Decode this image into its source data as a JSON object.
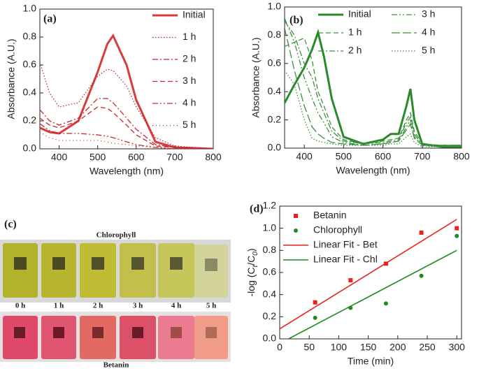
{
  "chart_data": [
    {
      "type": "line",
      "panel_label": "(a)",
      "xlabel": "Wavelength (nm)",
      "ylabel": "Absorbance (A.U.)",
      "x": [
        350,
        375,
        400,
        450,
        500,
        525,
        540,
        575,
        600,
        650,
        700,
        800
      ],
      "xlim": [
        350,
        800
      ],
      "xticks": [
        400,
        500,
        600,
        700,
        800
      ],
      "ylim": [
        0,
        1.0
      ],
      "yticks": [
        {
          "value": 0,
          "label": "0.0"
        },
        0.2,
        0.4,
        0.6,
        0.8,
        {
          "value": 1.0,
          "label": "1.0"
        }
      ],
      "legend": "upper right",
      "legend_columns": 1,
      "series": [
        {
          "name": "Initial",
          "color": "#d93a3a",
          "line_style": "solid",
          "width": 3,
          "values": [
            0.15,
            0.12,
            0.11,
            0.2,
            0.55,
            0.75,
            0.81,
            0.6,
            0.35,
            0.05,
            0.01,
            0.0
          ]
        },
        {
          "name": "1 h",
          "color": "#c8282d",
          "line_style": "dotted",
          "width": 1.3,
          "values": [
            0.62,
            0.4,
            0.3,
            0.33,
            0.52,
            0.57,
            0.56,
            0.45,
            0.3,
            0.08,
            0.02,
            0.0
          ]
        },
        {
          "name": "2 h",
          "color": "#c8282d",
          "line_style": "dashdot",
          "width": 1.3,
          "values": [
            0.28,
            0.2,
            0.17,
            0.22,
            0.36,
            0.36,
            0.33,
            0.22,
            0.14,
            0.03,
            0.01,
            0.0
          ]
        },
        {
          "name": "3 h",
          "color": "#c8282d",
          "line_style": "dashed",
          "width": 1.3,
          "values": [
            0.22,
            0.17,
            0.15,
            0.2,
            0.3,
            0.29,
            0.26,
            0.17,
            0.1,
            0.02,
            0.01,
            0.0
          ]
        },
        {
          "name": "4 h",
          "color": "#c8282d",
          "line_style": "dashdotdot",
          "width": 1.3,
          "values": [
            0.18,
            0.13,
            0.11,
            0.11,
            0.1,
            0.09,
            0.08,
            0.05,
            0.03,
            0.01,
            0.0,
            0.0
          ]
        },
        {
          "name": "5 h",
          "color": "#c8282d",
          "line_style": "shortdot",
          "width": 1.3,
          "values": [
            0.12,
            0.08,
            0.06,
            0.06,
            0.06,
            0.05,
            0.04,
            0.03,
            0.02,
            0.01,
            0.0,
            0.0
          ]
        }
      ]
    },
    {
      "type": "line",
      "panel_label": "(b)",
      "xlabel": "Wavelength (nm)",
      "ylabel": "Absorbance (A.U.)",
      "x": [
        350,
        375,
        400,
        420,
        435,
        450,
        470,
        500,
        550,
        600,
        620,
        640,
        660,
        670,
        680,
        700,
        750,
        800
      ],
      "xlim": [
        350,
        800
      ],
      "xticks": [
        400,
        500,
        600,
        700,
        800
      ],
      "ylim": [
        0,
        1.0
      ],
      "yticks": [
        {
          "value": 0,
          "label": "0.0"
        },
        0.2,
        0.4,
        0.6,
        0.8,
        {
          "value": 1.0,
          "label": "1.0"
        }
      ],
      "legend": "upper right",
      "legend_columns": 2,
      "series": [
        {
          "name": "Initial",
          "color": "#2a8a2a",
          "line_style": "solid",
          "width": 3,
          "values": [
            0.32,
            0.45,
            0.57,
            0.7,
            0.82,
            0.65,
            0.35,
            0.08,
            0.03,
            0.06,
            0.1,
            0.1,
            0.3,
            0.42,
            0.2,
            0.03,
            0.01,
            0.01
          ]
        },
        {
          "name": "1 h",
          "color": "#3c8f3c",
          "line_style": "dashed",
          "width": 1.3,
          "values": [
            0.72,
            0.75,
            0.78,
            0.62,
            0.4,
            0.3,
            0.15,
            0.06,
            0.03,
            0.05,
            0.06,
            0.07,
            0.2,
            0.25,
            0.12,
            0.03,
            0.02,
            0.02
          ]
        },
        {
          "name": "2 h",
          "color": "#3c8f3c",
          "line_style": "dashdot",
          "width": 1.3,
          "values": [
            0.9,
            0.8,
            0.6,
            0.5,
            0.35,
            0.25,
            0.12,
            0.05,
            0.03,
            0.04,
            0.05,
            0.06,
            0.18,
            0.22,
            0.1,
            0.02,
            0.02,
            0.02
          ]
        },
        {
          "name": "3 h",
          "color": "#3c8f3c",
          "line_style": "dashdotdot",
          "width": 1.3,
          "values": [
            0.92,
            0.75,
            0.5,
            0.35,
            0.25,
            0.18,
            0.08,
            0.04,
            0.02,
            0.03,
            0.04,
            0.05,
            0.15,
            0.2,
            0.08,
            0.02,
            0.02,
            0.02
          ]
        },
        {
          "name": "4 h",
          "color": "#3c8f3c",
          "line_style": "longdash",
          "width": 1.3,
          "values": [
            0.85,
            0.55,
            0.3,
            0.15,
            0.1,
            0.07,
            0.04,
            0.03,
            0.02,
            0.03,
            0.04,
            0.05,
            0.13,
            0.17,
            0.07,
            0.02,
            0.01,
            0.01
          ]
        },
        {
          "name": "5 h",
          "color": "#3c8f3c",
          "line_style": "dotted",
          "width": 1.3,
          "values": [
            0.55,
            0.45,
            0.2,
            0.07,
            0.05,
            0.04,
            0.03,
            0.02,
            0.02,
            0.02,
            0.03,
            0.03,
            0.08,
            0.1,
            0.04,
            0.01,
            0.01,
            0.01
          ]
        }
      ]
    },
    {
      "type": "scatter",
      "panel_label": "(d)",
      "xlabel": "Time (min)",
      "ylabel_parts": [
        "-log (C",
        "t",
        "/C",
        "0",
        ")"
      ],
      "xlim": [
        0,
        308
      ],
      "xticks": [
        0,
        50,
        100,
        150,
        200,
        250,
        300
      ],
      "ylim": [
        0,
        1.2
      ],
      "yticks": [
        {
          "value": 0,
          "label": "0.0"
        },
        0.2,
        0.4,
        0.6,
        0.8,
        {
          "value": 1.0,
          "label": "1.0"
        },
        1.2
      ],
      "legend": "upper left",
      "legend_columns": 1,
      "series": [
        {
          "name": "Betanin",
          "color": "#e8221f",
          "style": "markers",
          "marker": "square",
          "x": [
            60,
            120,
            180,
            240,
            300
          ],
          "values": [
            0.33,
            0.53,
            0.68,
            0.96,
            1.0
          ]
        },
        {
          "name": "Chlorophyll",
          "color": "#1f8a1f",
          "style": "markers",
          "marker": "circle",
          "x": [
            60,
            120,
            180,
            240,
            300
          ],
          "values": [
            0.19,
            0.28,
            0.32,
            0.57,
            0.93
          ]
        },
        {
          "name": "Linear Fit - Bet",
          "color": "#e8221f",
          "style": "line",
          "x": [
            0,
            300
          ],
          "values": [
            0.09,
            1.08
          ]
        },
        {
          "name": "Linear Fit - Chl",
          "color": "#1f8a1f",
          "style": "line",
          "x": [
            15,
            300
          ],
          "values": [
            0,
            0.8
          ]
        }
      ]
    }
  ],
  "photo_panel": {
    "panel_label": "(c)",
    "top_caption": "Chlorophyll",
    "times": [
      "0 h",
      "1 h",
      "2 h",
      "3 h",
      "4 h",
      "5 h"
    ],
    "bottom_caption": "Betanin"
  }
}
